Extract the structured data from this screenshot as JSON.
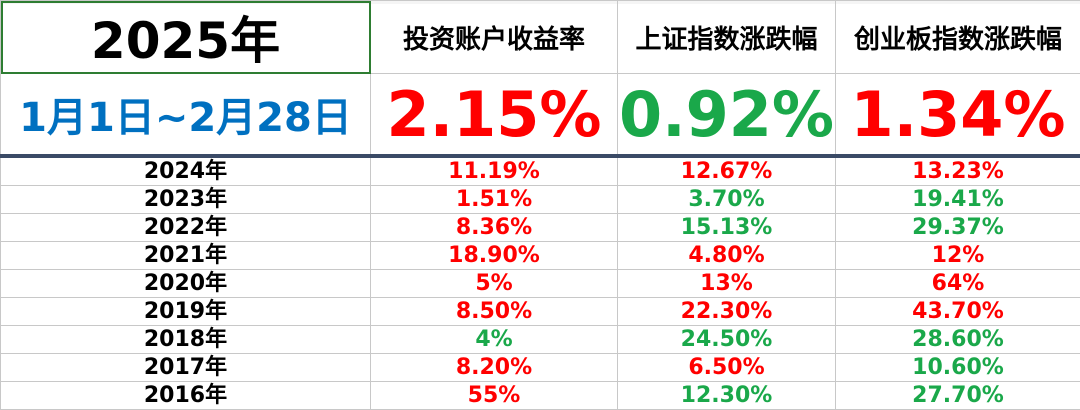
{
  "header": {
    "year_title": "2025年",
    "date_range": "1月1日~2月28日",
    "columns": [
      "投资账户收益率",
      "上证指数涨跌幅",
      "创业板指数涨跌幅"
    ],
    "current": [
      "2.15%",
      "0.92%",
      "1.34%"
    ]
  },
  "colors": {
    "red": "#ff0000",
    "green": "#1aa84a",
    "blue": "#0070c0",
    "divider": "#3a4a66"
  },
  "rows": [
    {
      "year": "2024年",
      "values": [
        "11.19%",
        "12.67%",
        "13.23%"
      ]
    },
    {
      "year": "2023年",
      "values": [
        "1.51%",
        "3.70%",
        "19.41%"
      ]
    },
    {
      "year": "2022年",
      "values": [
        "8.36%",
        "15.13%",
        "29.37%"
      ]
    },
    {
      "year": "2021年",
      "values": [
        "18.90%",
        "4.80%",
        "12%"
      ]
    },
    {
      "year": "2020年",
      "values": [
        "5%",
        "13%",
        "64%"
      ]
    },
    {
      "year": "2019年",
      "values": [
        "8.50%",
        "22.30%",
        "43.70%"
      ]
    },
    {
      "year": "2018年",
      "values": [
        "4%",
        "24.50%",
        "28.60%"
      ]
    },
    {
      "year": "2017年",
      "values": [
        "8.20%",
        "6.50%",
        "10.60%"
      ]
    },
    {
      "year": "2016年",
      "values": [
        "55%",
        "12.30%",
        "27.70%"
      ]
    }
  ],
  "value_colors": [
    [
      "red",
      "red",
      "red"
    ],
    [
      "red",
      "green",
      "green"
    ],
    [
      "red",
      "green",
      "green"
    ],
    [
      "red",
      "red",
      "red"
    ],
    [
      "red",
      "red",
      "red"
    ],
    [
      "red",
      "red",
      "red"
    ],
    [
      "green",
      "green",
      "green"
    ],
    [
      "red",
      "red",
      "green"
    ],
    [
      "red",
      "green",
      "green"
    ]
  ]
}
